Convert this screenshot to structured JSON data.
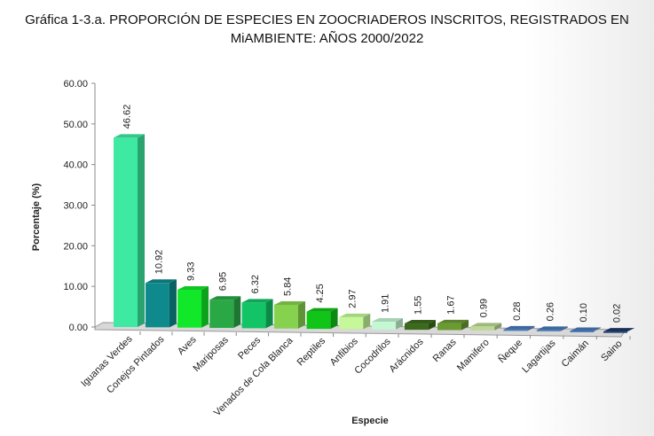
{
  "chart_data": {
    "type": "bar",
    "title": "Gráfica 1-3.a. PROPORCIÓN DE ESPECIES EN ZOOCRIADEROS INSCRITOS, REGISTRADOS EN MiAMBIENTE: AÑOS  2000/2022",
    "xlabel": "Especie",
    "ylabel": "Porcentaje (%)",
    "ylim": [
      0,
      60
    ],
    "yticks": [
      "0.00",
      "10.00",
      "20.00",
      "30.00",
      "40.00",
      "50.00",
      "60.00"
    ],
    "grid": false,
    "categories": [
      "Iguanas Verdes",
      "Conejos Pintados",
      "Aves",
      "Mariposas",
      "Peces",
      "Venados de Cola Blanca",
      "Reptiles",
      "Anfibios",
      "Cocodrilos",
      "Arácnidos",
      "Ranas",
      "Mamifero",
      "Ñeque",
      "Lagartijas",
      "Caimán",
      "Saino"
    ],
    "values": [
      46.62,
      10.92,
      9.33,
      6.95,
      6.32,
      5.84,
      4.25,
      2.97,
      1.91,
      1.55,
      1.67,
      0.99,
      0.28,
      0.26,
      0.1,
      0.02
    ],
    "data_labels": [
      "46.62",
      "10.92",
      "9.33",
      "6.95",
      "6.32",
      "5.84",
      "4.25",
      "2.97",
      "1.91",
      "1.55",
      "1.67",
      "0.99",
      "0.28",
      "0.26",
      "0.10",
      "0.02"
    ],
    "colors": [
      "#3ee9a2",
      "#0f8a8c",
      "#12e82a",
      "#2aa846",
      "#12c466",
      "#86d24e",
      "#10c418",
      "#c4f898",
      "#c4f8d4",
      "#3c6a1c",
      "#6a9a32",
      "#bcd894",
      "#4a7cba",
      "#4a7cba",
      "#4a7cba",
      "#1c3a68"
    ]
  }
}
